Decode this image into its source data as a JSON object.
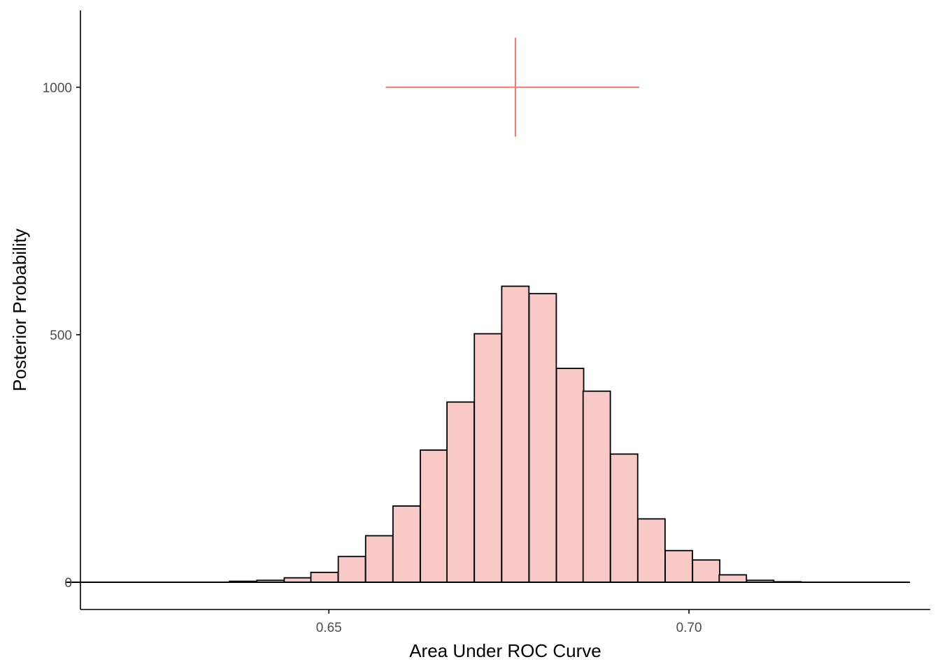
{
  "chart_data": {
    "type": "bar",
    "title": "",
    "xlabel": "Area Under ROC Curve",
    "ylabel": "Posterior Probability",
    "xlim": [
      0.6155,
      0.7335
    ],
    "ylim": [
      -55,
      1155
    ],
    "x_ticks": [
      0.65,
      0.7
    ],
    "x_tick_labels": [
      "0.65",
      "0.70"
    ],
    "y_ticks": [
      0,
      500,
      1000
    ],
    "y_tick_labels": [
      "0",
      "500",
      "1000"
    ],
    "grid": false,
    "bin_width": 0.00378,
    "bins": [
      {
        "x0": 0.6135,
        "count": 0
      },
      {
        "x0": 0.6173,
        "count": 0
      },
      {
        "x0": 0.6211,
        "count": 0
      },
      {
        "x0": 0.6249,
        "count": 0
      },
      {
        "x0": 0.6287,
        "count": 0
      },
      {
        "x0": 0.6324,
        "count": 0
      },
      {
        "x0": 0.6362,
        "count": 2
      },
      {
        "x0": 0.64,
        "count": 4
      },
      {
        "x0": 0.6438,
        "count": 9
      },
      {
        "x0": 0.6475,
        "count": 20
      },
      {
        "x0": 0.6513,
        "count": 52
      },
      {
        "x0": 0.6551,
        "count": 94
      },
      {
        "x0": 0.6589,
        "count": 154
      },
      {
        "x0": 0.6627,
        "count": 267
      },
      {
        "x0": 0.6664,
        "count": 364
      },
      {
        "x0": 0.6702,
        "count": 502
      },
      {
        "x0": 0.674,
        "count": 598
      },
      {
        "x0": 0.6778,
        "count": 583
      },
      {
        "x0": 0.6816,
        "count": 432
      },
      {
        "x0": 0.6853,
        "count": 386
      },
      {
        "x0": 0.6891,
        "count": 259
      },
      {
        "x0": 0.6929,
        "count": 128
      },
      {
        "x0": 0.6967,
        "count": 64
      },
      {
        "x0": 0.7005,
        "count": 45
      },
      {
        "x0": 0.7042,
        "count": 15
      },
      {
        "x0": 0.708,
        "count": 4
      },
      {
        "x0": 0.7118,
        "count": 1
      },
      {
        "x0": 0.7156,
        "count": 0
      },
      {
        "x0": 0.7193,
        "count": 0
      },
      {
        "x0": 0.7231,
        "count": 0
      },
      {
        "x0": 0.7269,
        "count": 0
      }
    ],
    "baseline_range": [
      0.6135,
      0.7307
    ],
    "interval_marker": {
      "point_estimate": 0.6759,
      "x_low": 0.6579,
      "x_high": 0.6931,
      "y": 1000,
      "y_low": 900,
      "y_high": 1100,
      "color": "#F8766D"
    },
    "bar_fill": "#F8C9C6",
    "bar_stroke": "#000000"
  }
}
